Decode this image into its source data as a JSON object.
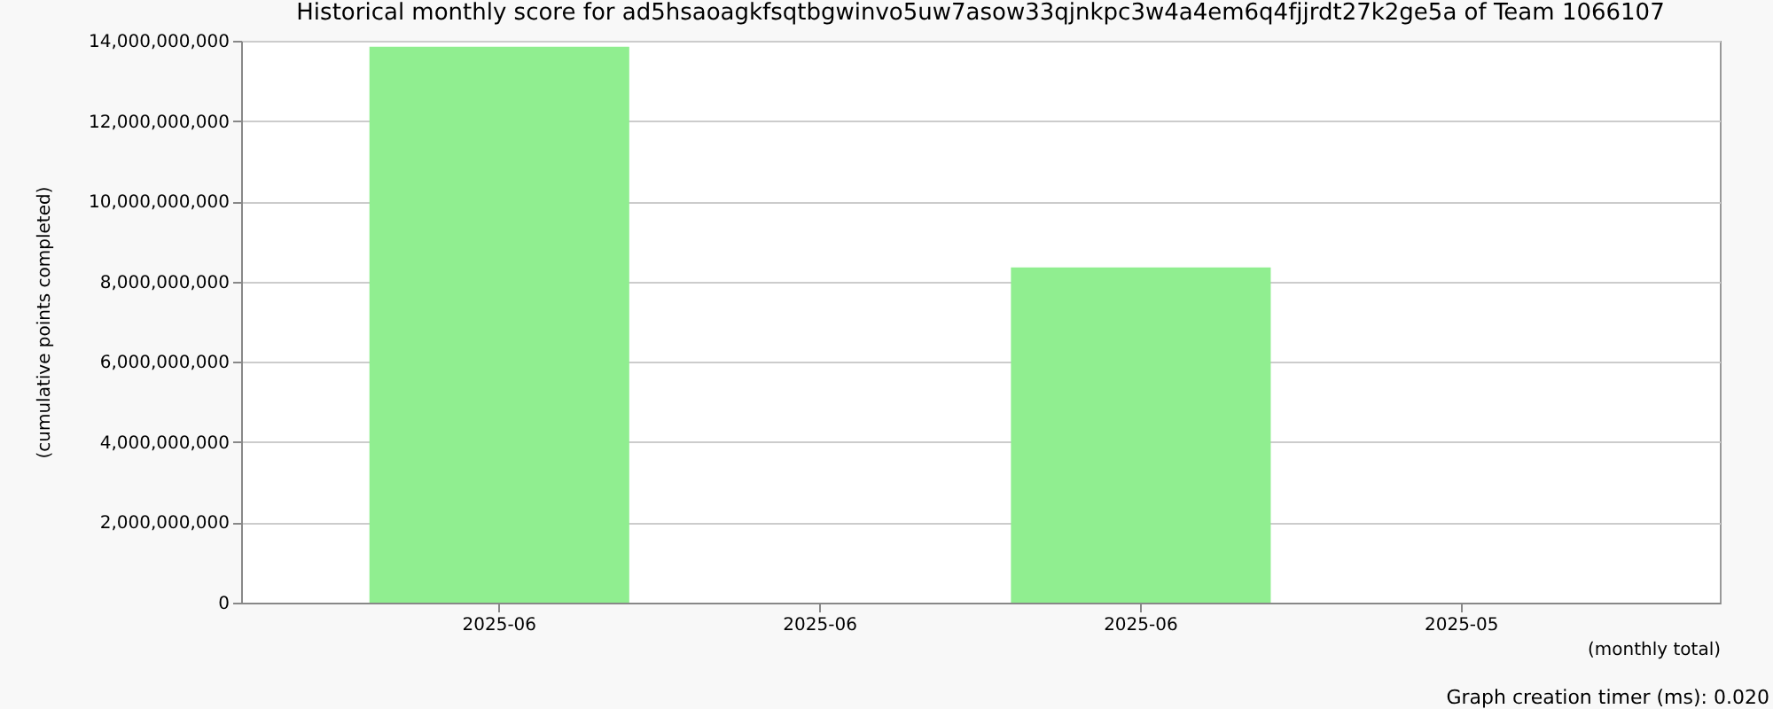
{
  "chart_data": {
    "type": "bar",
    "title": "Historical monthly score for ad5hsaoagkfsqtbgwinvo5uw7asow33qjnkpc3w4a4em6q4fjjrdt27k2ge5a of Team 1066107",
    "categories": [
      "2025-06",
      "2025-06",
      "2025-06",
      "2025-05"
    ],
    "values": [
      13850000000,
      null,
      8350000000,
      null
    ],
    "color": "#90ee90",
    "ylim": [
      0,
      14000000000
    ],
    "yticks": [
      0,
      {
        "value": 2000000000,
        "label": "2,000,000,000"
      },
      {
        "value": 4000000000,
        "label": "4,000,000,000"
      },
      {
        "value": 6000000000,
        "label": "6,000,000,000"
      },
      {
        "value": 8000000000,
        "label": "8,000,000,000"
      },
      {
        "value": 10000000000,
        "label": "10,000,000,000"
      },
      {
        "value": 12000000000,
        "label": "12,000,000,000"
      },
      {
        "value": 14000000000,
        "label": "14,000,000,000"
      }
    ],
    "ylabel": "(cumulative points completed)",
    "xlabel": "(monthly total)",
    "grid": "y",
    "annotations": [
      "Graph creation timer (ms): 0.020"
    ]
  }
}
